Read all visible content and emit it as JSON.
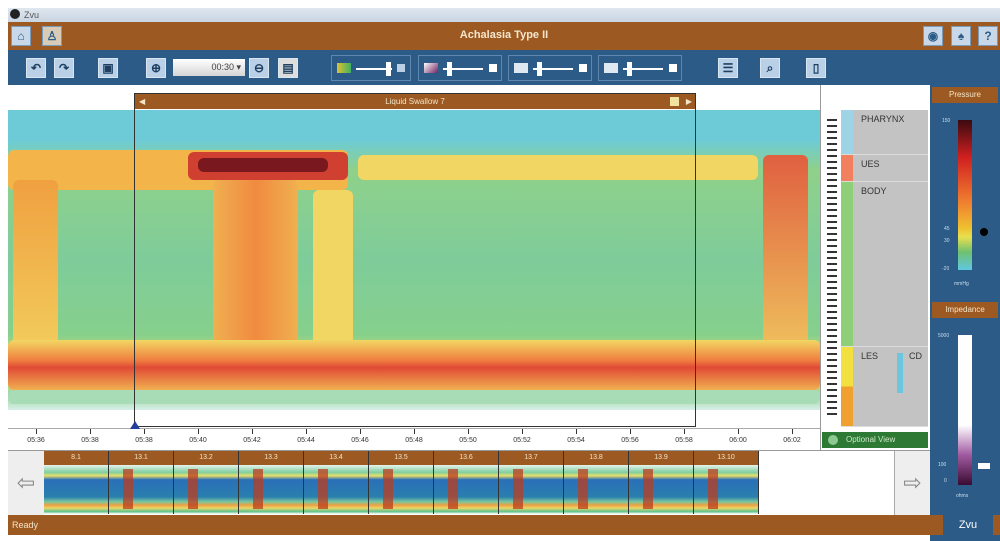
{
  "window": {
    "title": "Zvu"
  },
  "header": {
    "title": "Achalasia Type II",
    "home_icon": "home-icon",
    "patient_icon": "patient-icon",
    "right_icons": [
      "globe-icon",
      "key-icon",
      "help-icon"
    ]
  },
  "toolbar": {
    "zoom_value": "00:30",
    "icons": [
      "undo-icon",
      "redo-icon",
      "save-icon",
      "zoom-in-icon",
      "zoom-out-icon",
      "print-icon",
      "report-icon",
      "search-icon",
      "export-icon"
    ]
  },
  "swallow": {
    "title": "Liquid Swallow 7"
  },
  "time_axis": [
    "05:36",
    "05:38",
    "05:38",
    "05:40",
    "05:42",
    "05:44",
    "05:46",
    "05:48",
    "05:50",
    "05:52",
    "05:54",
    "05:56",
    "05:58",
    "06:00",
    "06:02"
  ],
  "landmarks": {
    "pharynx": "PHARYNX",
    "ues": "UES",
    "body": "BODY",
    "les": "LES",
    "cd": "CD"
  },
  "optional_view": "Optional View",
  "pressure": {
    "title": "Pressure",
    "max": "150",
    "mid1": "45",
    "mid2": "30",
    "min": "-20",
    "unit": "mmHg"
  },
  "impedance": {
    "title": "Impedance",
    "max": "5000",
    "mid": "100",
    "min": "0",
    "unit": "ohms"
  },
  "thumbnails": [
    "8.1",
    "13.1",
    "13.2",
    "13.3",
    "13.4",
    "13.5",
    "13.6",
    "13.7",
    "13.8",
    "13.9",
    "13.10"
  ],
  "status": "Ready",
  "logo": "Zvu",
  "colors": {
    "brown": "#9c5a22",
    "blue": "#2b5b86",
    "green": "#2e7a35"
  }
}
